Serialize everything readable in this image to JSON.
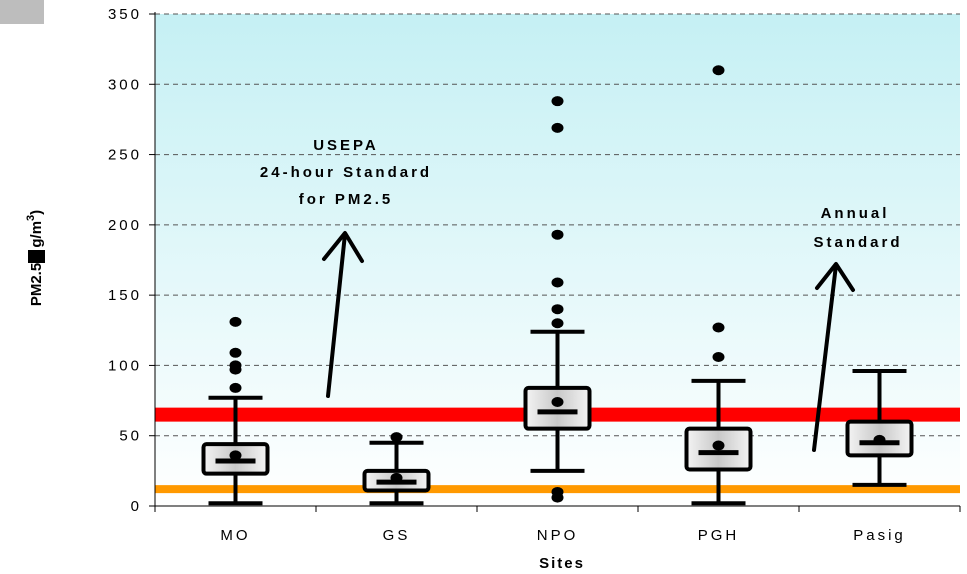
{
  "chart_data": {
    "type": "box",
    "ylabel": "PM2.5 (µg/m³)",
    "ylabel_main": "PM2.5 (",
    "ylabel_unit": "g/m",
    "ylabel_sup": "3",
    "ylabel_close": ")",
    "xlabel": "Sites",
    "ylim": [
      0,
      350
    ],
    "yticks": [
      0,
      50,
      100,
      150,
      200,
      250,
      300,
      350
    ],
    "grid": "horizontal dashed",
    "categories": [
      "MO",
      "GS",
      "NPO",
      "PGH",
      "Pasig"
    ],
    "boxes": [
      {
        "site": "MO",
        "whisker_low": 2,
        "q1": 23,
        "median": 32,
        "q3": 44,
        "whisker_high": 77,
        "mean": 36,
        "outliers": [
          84,
          97,
          100,
          109,
          131
        ]
      },
      {
        "site": "GS",
        "whisker_low": 2,
        "q1": 11,
        "median": 17,
        "q3": 25,
        "whisker_high": 45,
        "mean": 20,
        "outliers": [
          49
        ]
      },
      {
        "site": "NPO",
        "whisker_low": 25,
        "q1": 55,
        "median": 67,
        "q3": 84,
        "whisker_high": 124,
        "mean": 74,
        "outliers": [
          6,
          10,
          130,
          140,
          159,
          193,
          269,
          288
        ]
      },
      {
        "site": "PGH",
        "whisker_low": 2,
        "q1": 26,
        "median": 38,
        "q3": 55,
        "whisker_high": 89,
        "mean": 43,
        "outliers": [
          106,
          127,
          310
        ]
      },
      {
        "site": "Pasig",
        "whisker_low": 15,
        "q1": 36,
        "median": 45,
        "q3": 60,
        "whisker_high": 96,
        "mean": 47,
        "outliers": []
      }
    ],
    "reference_lines": [
      {
        "name": "24-hour Standard",
        "value": 65,
        "color": "#ff0000"
      },
      {
        "name": "Annual Standard",
        "value": 12,
        "color": "#ff9900"
      }
    ],
    "annotations": [
      {
        "lines": [
          "USEPA",
          "24-hour Standard",
          "for PM2.5"
        ]
      },
      {
        "lines": [
          "Annual",
          "Standard"
        ]
      }
    ],
    "colors": {
      "plot_top": "#c5f0f4",
      "plot_bottom": "#ffffff",
      "box_edge": "#f4f4f4",
      "box_mid": "#c8c8c8",
      "stroke": "#000000"
    }
  }
}
